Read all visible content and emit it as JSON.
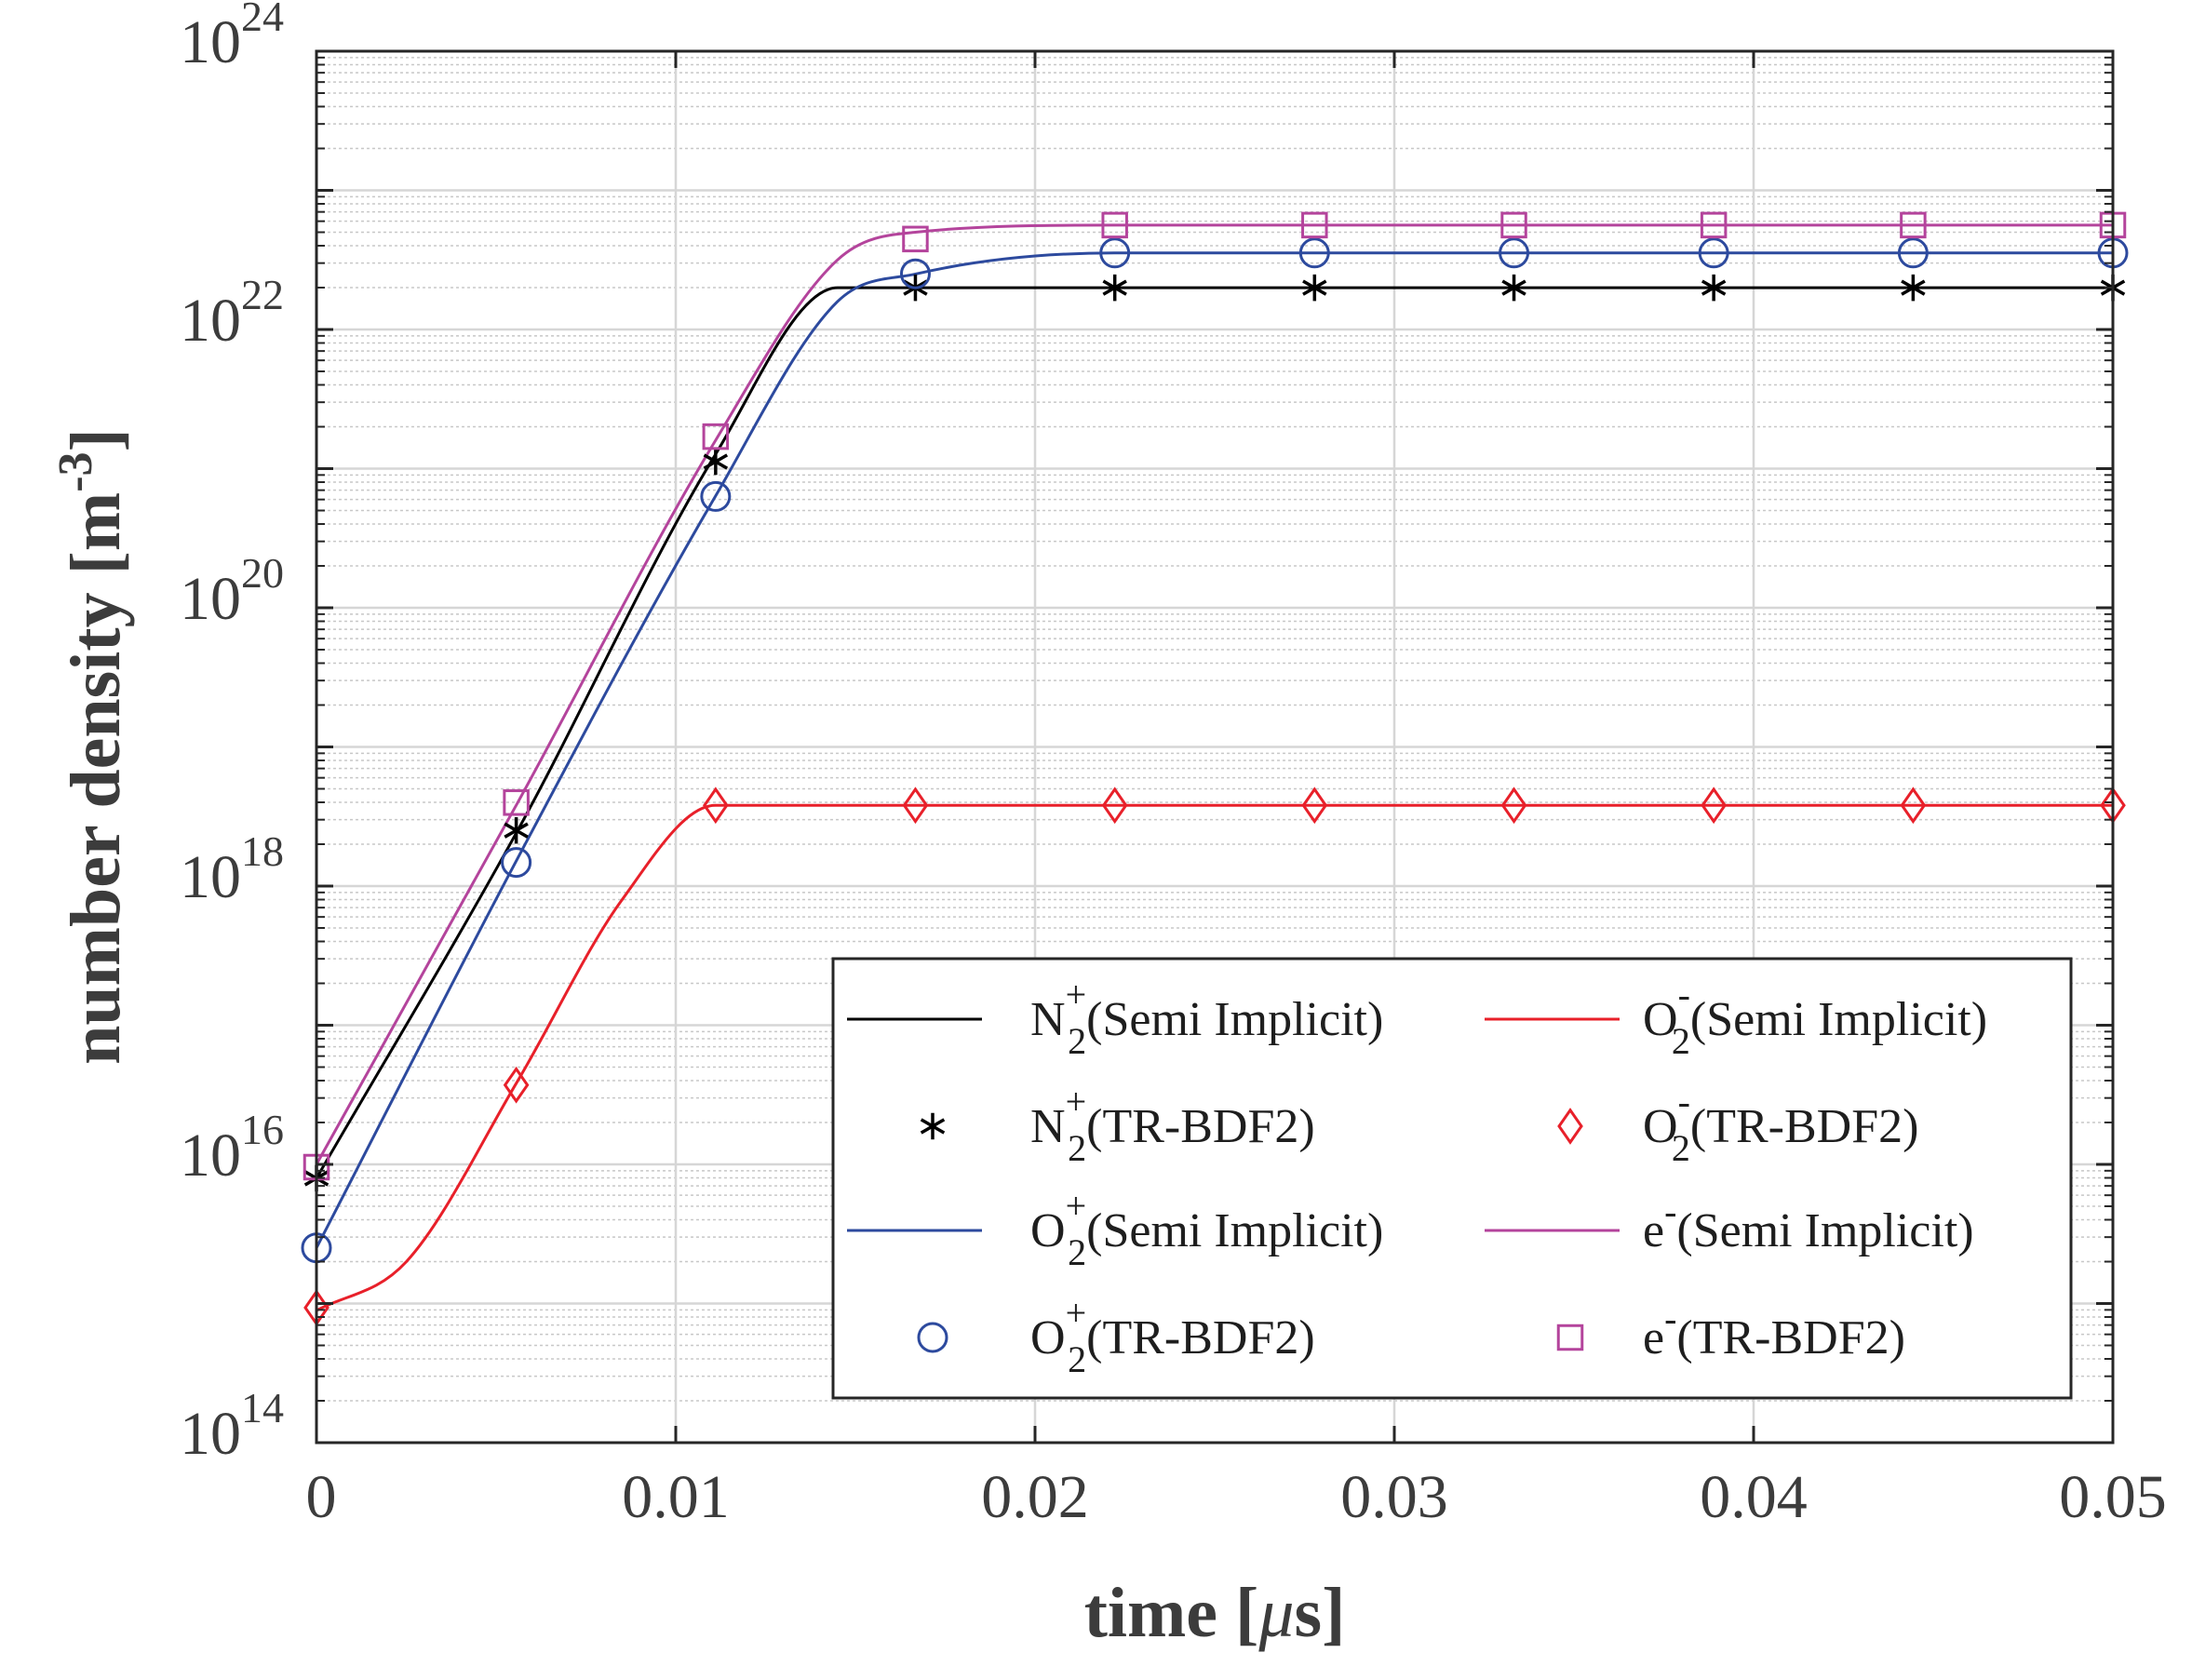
{
  "chart_data": {
    "type": "line",
    "title": "",
    "xlabel": "time [μs]",
    "ylabel": "number density [m⁻³]",
    "xlim": [
      0,
      0.05
    ],
    "ylim": [
      100000000000000.0,
      1e+24
    ],
    "yscale": "log",
    "grid": true,
    "legend_position": "bottom-right",
    "x_ticks": [
      {
        "value": 0,
        "label": "0"
      },
      {
        "value": 0.01,
        "label": "0.01"
      },
      {
        "value": 0.02,
        "label": "0.02"
      },
      {
        "value": 0.03,
        "label": "0.03"
      },
      {
        "value": 0.04,
        "label": "0.04"
      },
      {
        "value": 0.05,
        "label": "0.05"
      }
    ],
    "y_ticks": [
      {
        "exp": 14,
        "base": "10",
        "sup": "14"
      },
      {
        "exp": 16,
        "base": "10",
        "sup": "16"
      },
      {
        "exp": 18,
        "base": "10",
        "sup": "18"
      },
      {
        "exp": 20,
        "base": "10",
        "sup": "20"
      },
      {
        "exp": 22,
        "base": "10",
        "sup": "22"
      },
      {
        "exp": 24,
        "base": "10",
        "sup": "24"
      }
    ],
    "series": [
      {
        "name": "N2+ (Semi Implicit)",
        "kind": "line",
        "color": "#000000",
        "x": [
          0,
          0.0056,
          0.0111,
          0.0145,
          0.0167,
          0.0222,
          0.05
        ],
        "log10_y": [
          15.9,
          18.4,
          21.1,
          22.3,
          22.3,
          22.3,
          22.3
        ]
      },
      {
        "name": "N2+ (TR-BDF2)",
        "kind": "marker",
        "marker": "asterisk",
        "color": "#000000",
        "x": [
          0,
          0.00556,
          0.01111,
          0.01667,
          0.02222,
          0.02778,
          0.03333,
          0.03889,
          0.04444,
          0.05
        ],
        "log10_y": [
          15.9,
          18.4,
          21.05,
          22.3,
          22.3,
          22.3,
          22.3,
          22.3,
          22.3,
          22.3
        ]
      },
      {
        "name": "O2+ (Semi Implicit)",
        "kind": "line",
        "color": "#2d4a9e",
        "x": [
          0,
          0.0056,
          0.0111,
          0.0145,
          0.0167,
          0.0222,
          0.05
        ],
        "log10_y": [
          15.4,
          18.2,
          20.8,
          22.2,
          22.4,
          22.55,
          22.55
        ]
      },
      {
        "name": "O2+ (TR-BDF2)",
        "kind": "marker",
        "marker": "circle",
        "color": "#2d4a9e",
        "x": [
          0,
          0.00556,
          0.01111,
          0.01667,
          0.02222,
          0.02778,
          0.03333,
          0.03889,
          0.04444,
          0.05
        ],
        "log10_y": [
          15.4,
          18.17,
          20.8,
          22.4,
          22.55,
          22.55,
          22.55,
          22.55,
          22.55,
          22.55
        ]
      },
      {
        "name": "O2- (Semi Implicit)",
        "kind": "line",
        "color": "#e8202a",
        "x": [
          0,
          0.0025,
          0.0056,
          0.0085,
          0.0111,
          0.0125,
          0.05
        ],
        "log10_y": [
          14.95,
          15.3,
          16.6,
          17.9,
          18.58,
          18.58,
          18.58
        ]
      },
      {
        "name": "O2- (TR-BDF2)",
        "kind": "marker",
        "marker": "diamond",
        "color": "#e8202a",
        "x": [
          0,
          0.00556,
          0.01111,
          0.01667,
          0.02222,
          0.02778,
          0.03333,
          0.03889,
          0.04444,
          0.05
        ],
        "log10_y": [
          14.97,
          16.57,
          18.58,
          18.58,
          18.58,
          18.58,
          18.58,
          18.58,
          18.58,
          18.58
        ]
      },
      {
        "name": "e- (Semi Implicit)",
        "kind": "line",
        "color": "#b4449c",
        "x": [
          0,
          0.0056,
          0.0111,
          0.0145,
          0.0167,
          0.0222,
          0.05
        ],
        "log10_y": [
          16.0,
          18.6,
          21.2,
          22.5,
          22.7,
          22.75,
          22.75
        ]
      },
      {
        "name": "e- (TR-BDF2)",
        "kind": "marker",
        "marker": "square",
        "color": "#b4449c",
        "x": [
          0,
          0.00556,
          0.01111,
          0.01667,
          0.02222,
          0.02778,
          0.03333,
          0.03889,
          0.04444,
          0.05
        ],
        "log10_y": [
          15.98,
          18.6,
          21.23,
          22.65,
          22.75,
          22.75,
          22.75,
          22.75,
          22.75,
          22.75
        ]
      }
    ],
    "legend": [
      {
        "series": 0,
        "base": "N",
        "sub": "2",
        "sup": "+",
        "suffix": "(Semi Implicit)"
      },
      {
        "series": 4,
        "base": "O",
        "sub": "2",
        "sup": "-",
        "suffix": "(Semi Implicit)"
      },
      {
        "series": 1,
        "base": "N",
        "sub": "2",
        "sup": "+",
        "suffix": "(TR-BDF2)"
      },
      {
        "series": 5,
        "base": "O",
        "sub": "2",
        "sup": "-",
        "suffix": "(TR-BDF2)"
      },
      {
        "series": 2,
        "base": "O",
        "sub": "2",
        "sup": "+",
        "suffix": "(Semi Implicit)"
      },
      {
        "series": 6,
        "base": "e",
        "sub": "",
        "sup": "-",
        "suffix": "(Semi Implicit)"
      },
      {
        "series": 3,
        "base": "O",
        "sub": "2",
        "sup": "+",
        "suffix": "(TR-BDF2)"
      },
      {
        "series": 7,
        "base": "e",
        "sub": "",
        "sup": "-",
        "suffix": "(TR-BDF2)"
      }
    ],
    "axis_title_parts": {
      "x": {
        "pre": "time [",
        "greek": "μ",
        "post": "s]"
      },
      "y": {
        "pre": "number density [m",
        "sup": "-3",
        "post": "]"
      }
    }
  }
}
